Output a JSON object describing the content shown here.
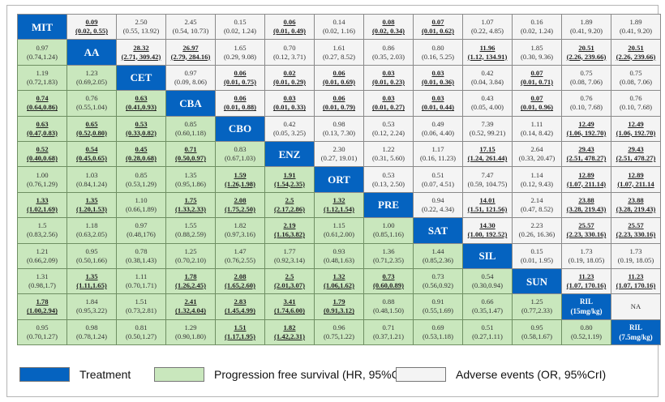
{
  "treatments": [
    "MIT",
    "AA",
    "CET",
    "CBA",
    "CBO",
    "ENZ",
    "ORT",
    "PRE",
    "SAT",
    "SIL",
    "SUN",
    "RIL (15mg/kg)",
    "RIL (7.5mg/kg)"
  ],
  "colors": {
    "treatment": "#0563c0",
    "pfs": "#c9e7bd",
    "ae": "#f4f4f4"
  },
  "legend": {
    "treatment": "Treatment",
    "pfs": "Progression free survival (HR, 95%CrI)",
    "ae": "Adverse events (OR, 95%CrI)"
  },
  "rows": [
    [
      null,
      [
        "0.09",
        "(0.02, 0.55)",
        1
      ],
      [
        "2.50",
        "(0.55, 13.92)",
        0
      ],
      [
        "2.45",
        "(0.54, 10.73)",
        0
      ],
      [
        "0.15",
        "(0.02, 1.24)",
        0
      ],
      [
        "0.06",
        "(0.01, 0.49)",
        1
      ],
      [
        "0.14",
        "(0.02, 1.16)",
        0
      ],
      [
        "0.08",
        "(0.02, 0.34)",
        1
      ],
      [
        "0.07",
        "(0.01, 0.62)",
        1
      ],
      [
        "1.07",
        "(0.22, 4.85)",
        0
      ],
      [
        "0.16",
        "(0.02, 1.24)",
        0
      ],
      [
        "1.89",
        "(0.41, 9.20)",
        0
      ],
      [
        "1.89",
        "(0.41, 9.20)",
        0
      ]
    ],
    [
      [
        "0.97",
        "(0.74,1.24)",
        0
      ],
      null,
      [
        "28.32",
        "(2.71, 309.42)",
        1
      ],
      [
        "26.97",
        "(2.79, 284.16)",
        1
      ],
      [
        "1.65",
        "(0.29, 9.08)",
        0
      ],
      [
        "0.70",
        "(0.12, 3.71)",
        0
      ],
      [
        "1.61",
        "(0.27, 8.52)",
        0
      ],
      [
        "0.86",
        "(0.35, 2.03)",
        0
      ],
      [
        "0.80",
        "(0.16, 5.25)",
        0
      ],
      [
        "11.96",
        "(1.12, 134.91)",
        1
      ],
      [
        "1.85",
        "(0.30, 9.36)",
        0
      ],
      [
        "20.51",
        "(2.26, 239.66)",
        1
      ],
      [
        "20.51",
        "(2.26, 239.66)",
        1
      ]
    ],
    [
      [
        "1.19",
        "(0.72,1.83)",
        0
      ],
      [
        "1.23",
        "(0.69,2.05)",
        0
      ],
      null,
      [
        "0.97",
        "(0.09, 8.06)",
        0
      ],
      [
        "0.06",
        "(0.01, 0.75)",
        1
      ],
      [
        "0.02",
        "(0.01, 0.29)",
        1
      ],
      [
        "0.06",
        "(0.01, 0.69)",
        1
      ],
      [
        "0.03",
        "(0.01, 0.23)",
        1
      ],
      [
        "0.03",
        "(0.01, 0.36)",
        1
      ],
      [
        "0.42",
        "(0.04, 3.84)",
        0
      ],
      [
        "0.07",
        "(0.01, 0.71)",
        1
      ],
      [
        "0.75",
        "(0.08, 7.06)",
        0
      ],
      [
        "0.75",
        "(0.08, 7.06)",
        0
      ]
    ],
    [
      [
        "0.74",
        "(0.64,0.86)",
        1
      ],
      [
        "0.76",
        "(0.55,1.04)",
        0
      ],
      [
        "0.63",
        "(0.41,0.93)",
        1
      ],
      null,
      [
        "0.06",
        "(0.01, 0.88)",
        1
      ],
      [
        "0.03",
        "(0.01, 0.33)",
        1
      ],
      [
        "0.06",
        "(0.01, 0.79)",
        1
      ],
      [
        "0.03",
        "(0.01, 0.27)",
        1
      ],
      [
        "0.03",
        "(0.01, 0.44)",
        1
      ],
      [
        "0.43",
        "(0.05, 4.00)",
        0
      ],
      [
        "0.07",
        "(0.01, 0.96)",
        1
      ],
      [
        "0.76",
        "(0.10, 7.68)",
        0
      ],
      [
        "0.76",
        "(0.10, 7.68)",
        0
      ]
    ],
    [
      [
        "0.63",
        "(0.47,0.83)",
        1
      ],
      [
        "0.65",
        "(0.52,0.80)",
        1
      ],
      [
        "0.53",
        "(0.33,0.82)",
        1
      ],
      [
        "0.85",
        "(0.60,1.18)",
        0
      ],
      null,
      [
        "0.42",
        "(0.05, 3.25)",
        0
      ],
      [
        "0.98",
        "(0.13, 7.30)",
        0
      ],
      [
        "0.53",
        "(0.12, 2.24)",
        0
      ],
      [
        "0.49",
        "(0.06, 4.40)",
        0
      ],
      [
        "7.39",
        "(0.52, 99.21)",
        0
      ],
      [
        "1.11",
        "(0.14, 8.42)",
        0
      ],
      [
        "12.49",
        "(1.06, 192.70)",
        1
      ],
      [
        "12.49",
        "(1.06, 192.70)",
        1
      ]
    ],
    [
      [
        "0.52",
        "(0.40,0.68)",
        1
      ],
      [
        "0.54",
        "(0.45,0.65)",
        1
      ],
      [
        "0.45",
        "(0.28,0.68)",
        1
      ],
      [
        "0.71",
        "(0.50,0.97)",
        1
      ],
      [
        "0.83",
        "(0.67,1.03)",
        0
      ],
      null,
      [
        "2.30",
        "(0.27, 19.01)",
        0
      ],
      [
        "1.22",
        "(0.31, 5.60)",
        0
      ],
      [
        "1.17",
        "(0.16, 11.23)",
        0
      ],
      [
        "17.15",
        "(1.24, 261.44)",
        1
      ],
      [
        "2.64",
        "(0.33, 20.47)",
        0
      ],
      [
        "29.43",
        "(2.51, 478.27)",
        1
      ],
      [
        "29.43",
        "(2.51, 478.27)",
        1
      ]
    ],
    [
      [
        "1.00",
        "(0.76,1.29)",
        0
      ],
      [
        "1.03",
        "(0.84,1.24)",
        0
      ],
      [
        "0.85",
        "(0.53,1.29)",
        0
      ],
      [
        "1.35",
        "(0.95,1.86)",
        0
      ],
      [
        "1.59",
        "(1.26,1.98)",
        1
      ],
      [
        "1.91",
        "(1.54,2.35)",
        1
      ],
      null,
      [
        "0.53",
        "(0.13, 2.50)",
        0
      ],
      [
        "0.51",
        "(0.07, 4.51)",
        0
      ],
      [
        "7.47",
        "(0.59, 104.75)",
        0
      ],
      [
        "1.14",
        "(0.12, 9.43)",
        0
      ],
      [
        "12.89",
        "(1.07, 211.14)",
        1
      ],
      [
        "12.89",
        "(1.07, 211.14",
        1
      ]
    ],
    [
      [
        "1.33",
        "(1.02,1.69)",
        1
      ],
      [
        "1.35",
        "(1.20,1.53)",
        1
      ],
      [
        "1.10",
        "(0.66,1.89)",
        0
      ],
      [
        "1.75",
        "(1.33,2.33)",
        1
      ],
      [
        "2.08",
        "(1.75,2.50)",
        1
      ],
      [
        "2.5",
        "(2.17,2.86)",
        1
      ],
      [
        "1.32",
        "(1.12,1.54)",
        1
      ],
      null,
      [
        "0.94",
        "(0.22, 4.34)",
        0
      ],
      [
        "14.01",
        "(1.51, 121.56)",
        1
      ],
      [
        "2.14",
        "(0.47, 8.52)",
        0
      ],
      [
        "23.88",
        "(3.28, 219.43)",
        1
      ],
      [
        "23.88",
        "(3.28, 219.43)",
        1
      ]
    ],
    [
      [
        "1.5",
        "(0.83,2.56)",
        0
      ],
      [
        "1.18",
        "(0.63,2.05)",
        0
      ],
      [
        "0.97",
        "(0.48,176)",
        0
      ],
      [
        "1.55",
        "(0.88,2.59)",
        0
      ],
      [
        "1.82",
        "(0.97,3.16)",
        0
      ],
      [
        "2.19",
        "(1.16,3.82)",
        1
      ],
      [
        "1.15",
        "(0.61,2.00)",
        0
      ],
      [
        "1.00",
        "(0.85,1.16)",
        0
      ],
      null,
      [
        "14.30",
        "(1.00, 192.52)",
        1
      ],
      [
        "2.23",
        "(0.26, 16.36)",
        0
      ],
      [
        "25.57",
        "(2.23, 330.16)",
        1
      ],
      [
        "25.57",
        "(2.23, 330.16)",
        1
      ]
    ],
    [
      [
        "1.21",
        "(0.66,2.09)",
        0
      ],
      [
        "0.95",
        "(0.50,1.66)",
        0
      ],
      [
        "0.78",
        "(0.38,1.43)",
        0
      ],
      [
        "1.25",
        "(0.70,2.10)",
        0
      ],
      [
        "1.47",
        "(0.76,2.55)",
        0
      ],
      [
        "1.77",
        "(0.92,3.14)",
        0
      ],
      [
        "0.93",
        "(0.48,1.63)",
        0
      ],
      [
        "1.36",
        "(0.71,2.35)",
        0
      ],
      [
        "1.44",
        "(0.85,2.36)",
        0
      ],
      null,
      [
        "0.15",
        "(0.01, 1.95)",
        0
      ],
      [
        "1.73",
        "(0.19, 18.05)",
        0
      ],
      [
        "1.73",
        "(0.19, 18.05)",
        0
      ]
    ],
    [
      [
        "1.31",
        "(0.98,1.7)",
        0
      ],
      [
        "1.35",
        "(1.11,1.65)",
        1
      ],
      [
        "1.11",
        "(0.70,1.71)",
        0
      ],
      [
        "1.78",
        "(1.26,2.45)",
        1
      ],
      [
        "2.08",
        "(1.65,2.60)",
        1
      ],
      [
        "2.5",
        "(2.01,3.07)",
        1
      ],
      [
        "1.32",
        "(1.06,1.62)",
        1
      ],
      [
        "0.73",
        "(0.60,0.89)",
        1
      ],
      [
        "0.73",
        "(0.56,0.92)",
        0
      ],
      [
        "0.54",
        "(0.30,0.94)",
        0
      ],
      null,
      [
        "11.23",
        "(1.07, 170.16)",
        1
      ],
      [
        "11.23",
        "(1.07, 170.16)",
        1
      ]
    ],
    [
      [
        "1.78",
        "(1.00,2.94)",
        1
      ],
      [
        "1.84",
        "(0.95,3.22)",
        0
      ],
      [
        "1.51",
        "(0.73,2.81)",
        0
      ],
      [
        "2.41",
        "(1.32,4.04)",
        1
      ],
      [
        "2.83",
        "(1.45,4.99)",
        1
      ],
      [
        "3.41",
        "(1.74,6.00)",
        1
      ],
      [
        "1.79",
        "(0.91,3.12)",
        1
      ],
      [
        "0.88",
        "(0.48,1.50)",
        0
      ],
      [
        "0.91",
        "(0.55,1.69)",
        0
      ],
      [
        "0.66",
        "(0.35,1.47)",
        0
      ],
      [
        "1.25",
        "(0.77,2.33)",
        0
      ],
      null,
      [
        "NA",
        "",
        0
      ]
    ],
    [
      [
        "0.95",
        "(0.70,1.27)",
        0
      ],
      [
        "0.98",
        "(0.78,1.24)",
        0
      ],
      [
        "0.81",
        "(0.50,1.27)",
        0
      ],
      [
        "1.29",
        "(0.90,1.80)",
        0
      ],
      [
        "1.51",
        "(1.17,1.95)",
        1
      ],
      [
        "1.82",
        "(1.42,2.31)",
        1
      ],
      [
        "0.96",
        "(0.75,1.22)",
        0
      ],
      [
        "0.71",
        "(0.37,1.21)",
        0
      ],
      [
        "0.69",
        "(0.53,1.18)",
        0
      ],
      [
        "0.51",
        "(0.27,1.11)",
        0
      ],
      [
        "0.95",
        "(0.58,1.67)",
        0
      ],
      [
        "0.80",
        "(0.52,1.19)",
        0
      ],
      null
    ]
  ]
}
